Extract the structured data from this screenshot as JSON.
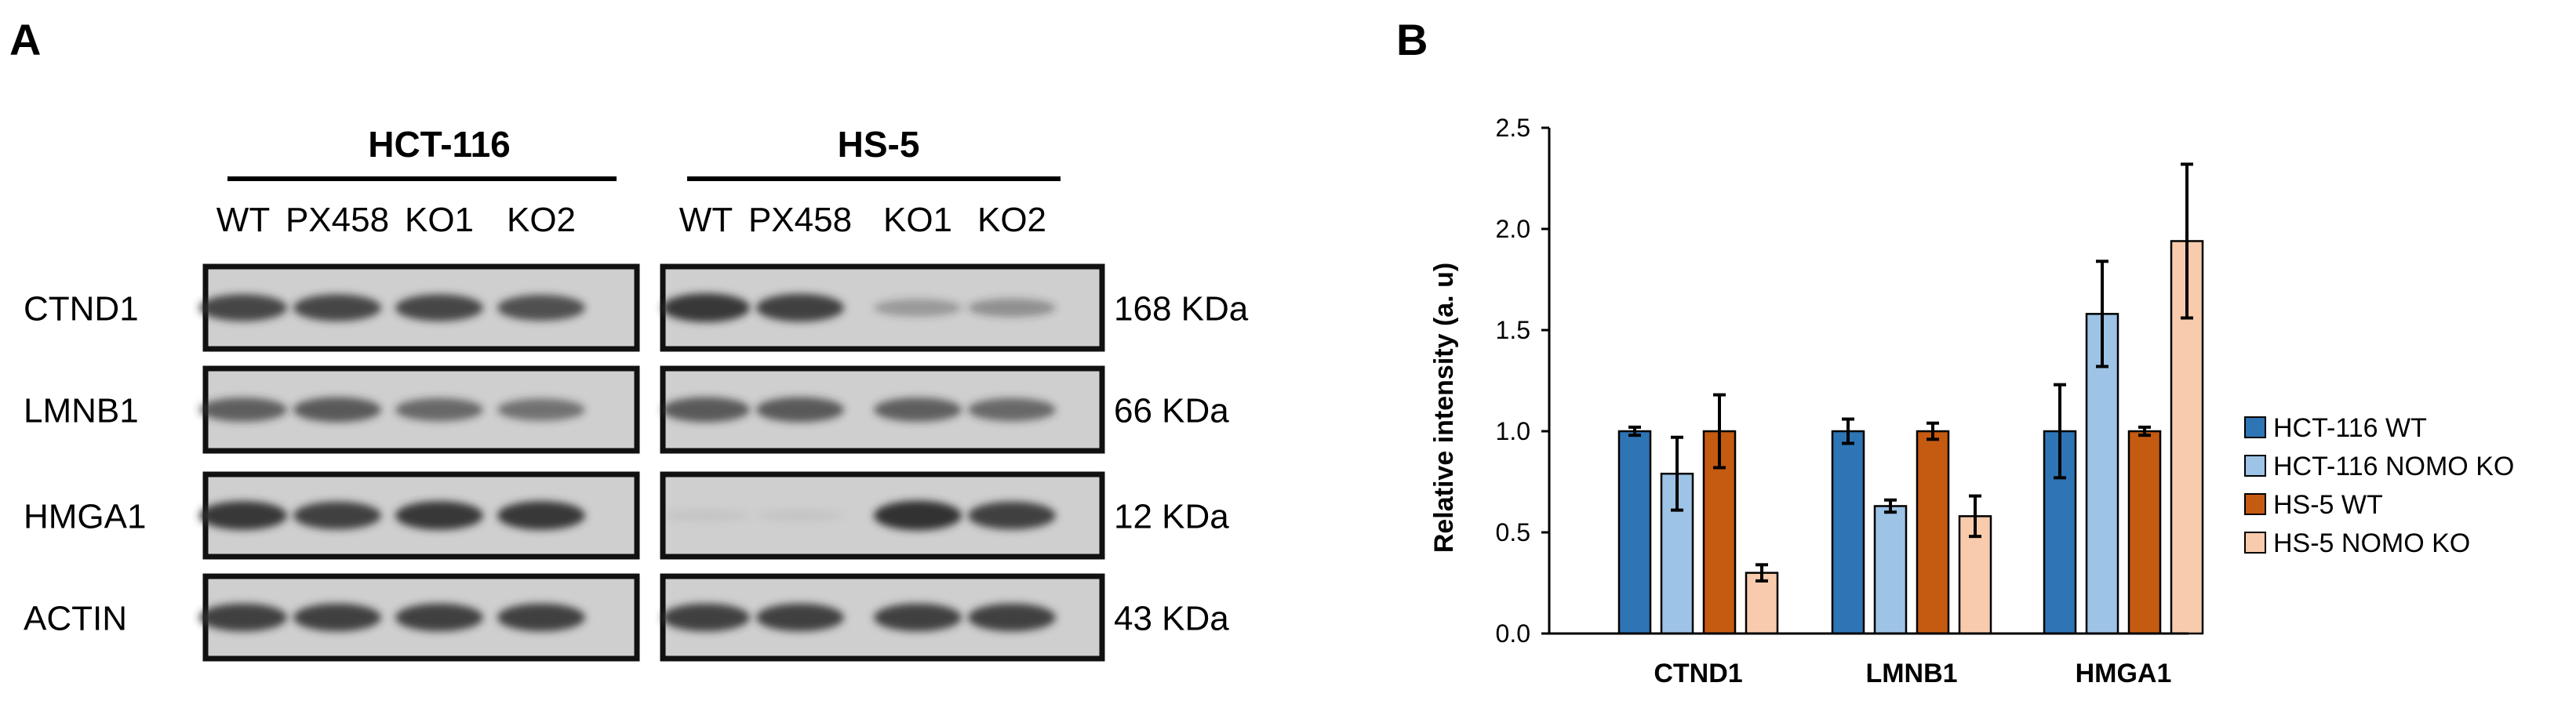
{
  "panel_a": {
    "label": "A",
    "groups": [
      {
        "name": "HCT-116",
        "lanes": [
          "WT",
          "PX458",
          "KO1",
          "KO2"
        ]
      },
      {
        "name": "HS-5",
        "lanes": [
          "WT",
          "PX458",
          "KO1",
          "KO2"
        ]
      }
    ],
    "rows": [
      {
        "protein": "CTND1",
        "size": "168 KDa",
        "hct": [
          0.85,
          0.85,
          0.85,
          0.8
        ],
        "hs5": [
          0.95,
          0.9,
          0.35,
          0.4
        ]
      },
      {
        "protein": "LMNB1",
        "size": "66 KDa",
        "hct": [
          0.7,
          0.75,
          0.65,
          0.6
        ],
        "hs5": [
          0.75,
          0.75,
          0.7,
          0.65
        ]
      },
      {
        "protein": "HMGA1",
        "size": "12 KDa",
        "hct": [
          0.95,
          0.9,
          0.95,
          0.95
        ],
        "hs5": [
          0.05,
          0.05,
          1.0,
          0.9
        ]
      },
      {
        "protein": "ACTIN",
        "size": "43 KDa",
        "hct": [
          0.9,
          0.9,
          0.9,
          0.9
        ],
        "hs5": [
          0.9,
          0.9,
          0.9,
          0.9
        ]
      }
    ],
    "colors": {
      "blot_bg": "#cfcfcf",
      "band": "#303030",
      "frame": "#111111"
    }
  },
  "chart_data": {
    "panel_label": "B",
    "type": "bar",
    "categories": [
      "CTND1",
      "LMNB1",
      "HMGA1"
    ],
    "ylabel": "Relative intensity (a. u)",
    "ylim": [
      0,
      2.5
    ],
    "yticks": [
      "0.0",
      "0.5",
      "1.0",
      "1.5",
      "2.0",
      "2.5"
    ],
    "grid": false,
    "legend": "right",
    "series": [
      {
        "name": "HCT-116 WT",
        "color": "#2e75b6",
        "values": [
          1.0,
          1.0,
          1.0
        ],
        "errors": [
          0.02,
          0.06,
          0.23
        ]
      },
      {
        "name": "HCT-116 NOMO KO",
        "color": "#9dc3e6",
        "values": [
          0.79,
          0.63,
          1.58
        ],
        "errors": [
          0.18,
          0.03,
          0.26
        ]
      },
      {
        "name": "HS-5 WT",
        "color": "#c55a11",
        "values": [
          1.0,
          1.0,
          1.0
        ],
        "errors": [
          0.18,
          0.04,
          0.02
        ]
      },
      {
        "name": "HS-5 NOMO KO",
        "color": "#f8cbad",
        "values": [
          0.3,
          0.58,
          1.94
        ],
        "errors": [
          0.04,
          0.1,
          0.38
        ]
      }
    ]
  }
}
